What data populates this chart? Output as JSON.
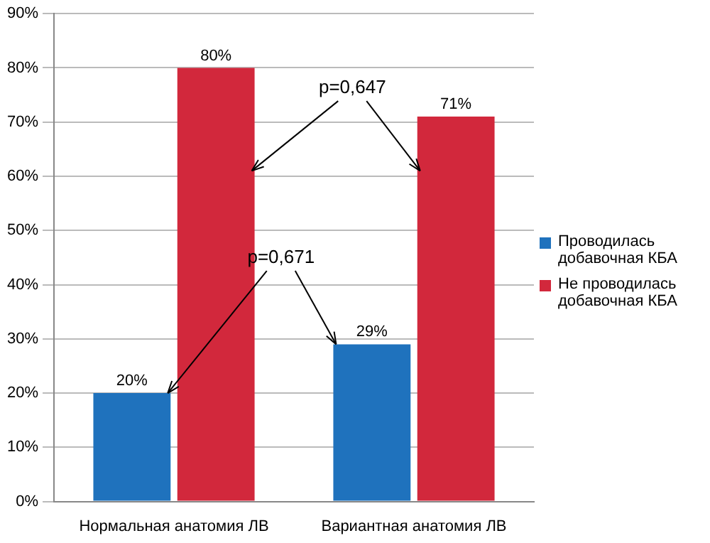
{
  "chart_data": {
    "type": "bar",
    "categories": [
      "Нормальная анатомия ЛВ",
      "Вариантная анатомия ЛВ"
    ],
    "series": [
      {
        "name": "Проводилась добавочная КБА",
        "color": "#1f72bd",
        "values": [
          20,
          29
        ],
        "value_labels": [
          "20%",
          "29%"
        ]
      },
      {
        "name": "Не проводилась добавочная КБА",
        "color": "#d2283c",
        "values": [
          80,
          71
        ],
        "value_labels": [
          "80%",
          "71%"
        ]
      }
    ],
    "ylim": [
      0,
      90
    ],
    "yticks": [
      {
        "value": 0,
        "label": "0%"
      },
      {
        "value": 10,
        "label": "10%"
      },
      {
        "value": 20,
        "label": "20%"
      },
      {
        "value": 30,
        "label": "30%"
      },
      {
        "value": 40,
        "label": "40%"
      },
      {
        "value": 50,
        "label": "50%"
      },
      {
        "value": 60,
        "label": "60%"
      },
      {
        "value": 70,
        "label": "70%"
      },
      {
        "value": 80,
        "label": "80%"
      },
      {
        "value": 90,
        "label": "90%"
      }
    ],
    "grid": "y",
    "legend": "right",
    "annotations": [
      {
        "text": "p=0,647",
        "x": "Вариантная анатомия ЛВ",
        "y": 71
      },
      {
        "text": "p=0,671",
        "x": "Нормальная анатомия ЛВ",
        "y": 20
      }
    ]
  }
}
